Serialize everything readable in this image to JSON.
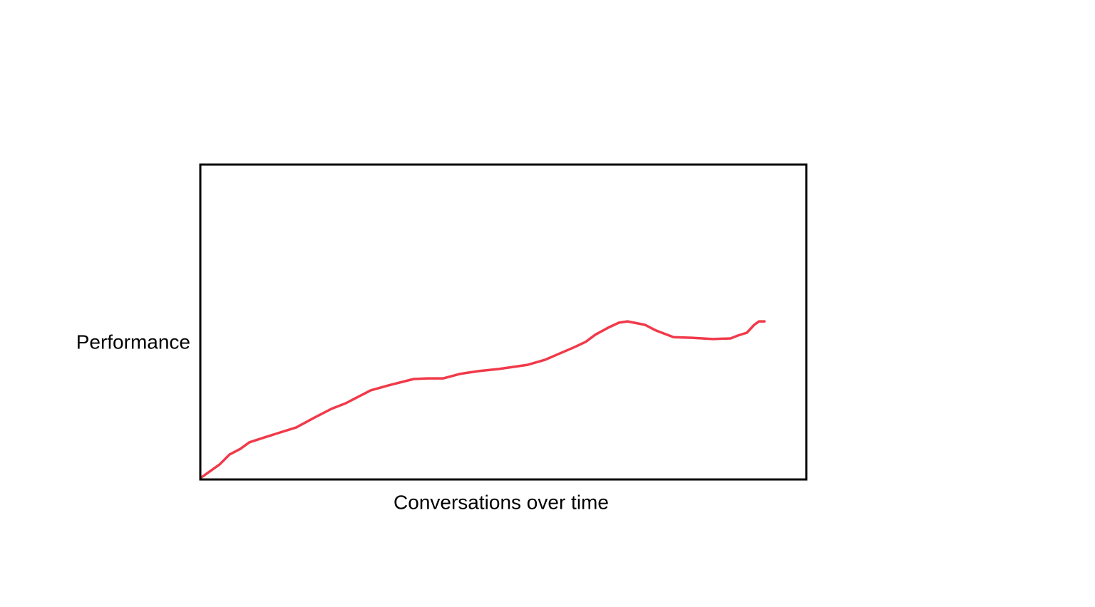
{
  "chart_data": {
    "type": "line",
    "xlabel": "Conversations over time",
    "ylabel": "Performance",
    "xlim": [
      0,
      100
    ],
    "ylim": [
      0,
      100
    ],
    "x": [
      0.2,
      3.2,
      4.8,
      6.6,
      8.1,
      10.5,
      12.8,
      15.8,
      18.7,
      21.6,
      24.0,
      25.8,
      28.1,
      31.1,
      35.2,
      37.5,
      40.1,
      42.8,
      45.8,
      49.3,
      54.0,
      56.9,
      59.3,
      61.6,
      63.6,
      65.2,
      67.5,
      69.1,
      70.5,
      73.4,
      75.2,
      78.1,
      81.1,
      84.6,
      87.5,
      88.7,
      90.2,
      91.4,
      92.2,
      93.1
    ],
    "series": [
      {
        "color": "#f03a4a",
        "values": [
          0.7,
          4.8,
          7.9,
          9.7,
          11.8,
          13.3,
          14.7,
          16.5,
          19.5,
          22.4,
          24.2,
          26.0,
          28.3,
          29.9,
          31.9,
          32.1,
          32.1,
          33.5,
          34.4,
          35.1,
          36.4,
          38.0,
          40.0,
          41.9,
          43.7,
          46.0,
          48.4,
          49.8,
          50.2,
          49.1,
          47.3,
          45.2,
          45.0,
          44.6,
          44.8,
          45.7,
          46.6,
          49.1,
          50.2,
          50.2
        ]
      }
    ]
  }
}
